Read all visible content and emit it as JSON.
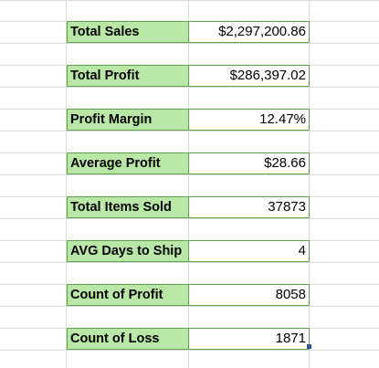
{
  "sheet": {
    "metrics": [
      {
        "label": "Total Sales",
        "value": "$2,297,200.86"
      },
      {
        "label": "Total Profit",
        "value": "$286,397.02"
      },
      {
        "label": "Profit Margin",
        "value": "12.47%"
      },
      {
        "label": "Average Profit",
        "value": "$28.66"
      },
      {
        "label": "Total Items Sold",
        "value": "37873"
      },
      {
        "label": "AVG Days to Ship",
        "value": "4"
      },
      {
        "label": "Count of Profit",
        "value": "8058"
      },
      {
        "label": "Count of Loss",
        "value": "1871"
      }
    ]
  },
  "colors": {
    "label_fill": "#b9e8a6",
    "border": "#5aa845",
    "gridline": "#d9d9d9",
    "selection": "#2f5597"
  }
}
